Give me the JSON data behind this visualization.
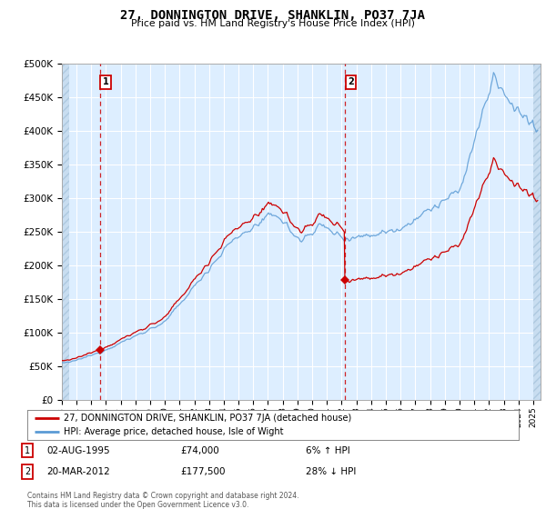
{
  "title": "27, DONNINGTON DRIVE, SHANKLIN, PO37 7JA",
  "subtitle": "Price paid vs. HM Land Registry's House Price Index (HPI)",
  "legend_line1": "27, DONNINGTON DRIVE, SHANKLIN, PO37 7JA (detached house)",
  "legend_line2": "HPI: Average price, detached house, Isle of Wight",
  "annotation1_date": "02-AUG-1995",
  "annotation1_price": "£74,000",
  "annotation1_hpi": "6% ↑ HPI",
  "annotation2_date": "20-MAR-2012",
  "annotation2_price": "£177,500",
  "annotation2_hpi": "28% ↓ HPI",
  "footnote": "Contains HM Land Registry data © Crown copyright and database right 2024.\nThis data is licensed under the Open Government Licence v3.0.",
  "sale1_year": 1995.58,
  "sale1_price": 74000,
  "sale2_year": 2012.22,
  "sale2_price": 177500,
  "hpi_color": "#5b9bd5",
  "price_color": "#cc0000",
  "dashed_color": "#cc0000",
  "ylim_min": 0,
  "ylim_max": 500000,
  "xlim_min": 1993.0,
  "xlim_max": 2025.5,
  "bg_color": "#ddeeff",
  "grid_color": "white",
  "hatch_bg_color": "#c8ddf0"
}
